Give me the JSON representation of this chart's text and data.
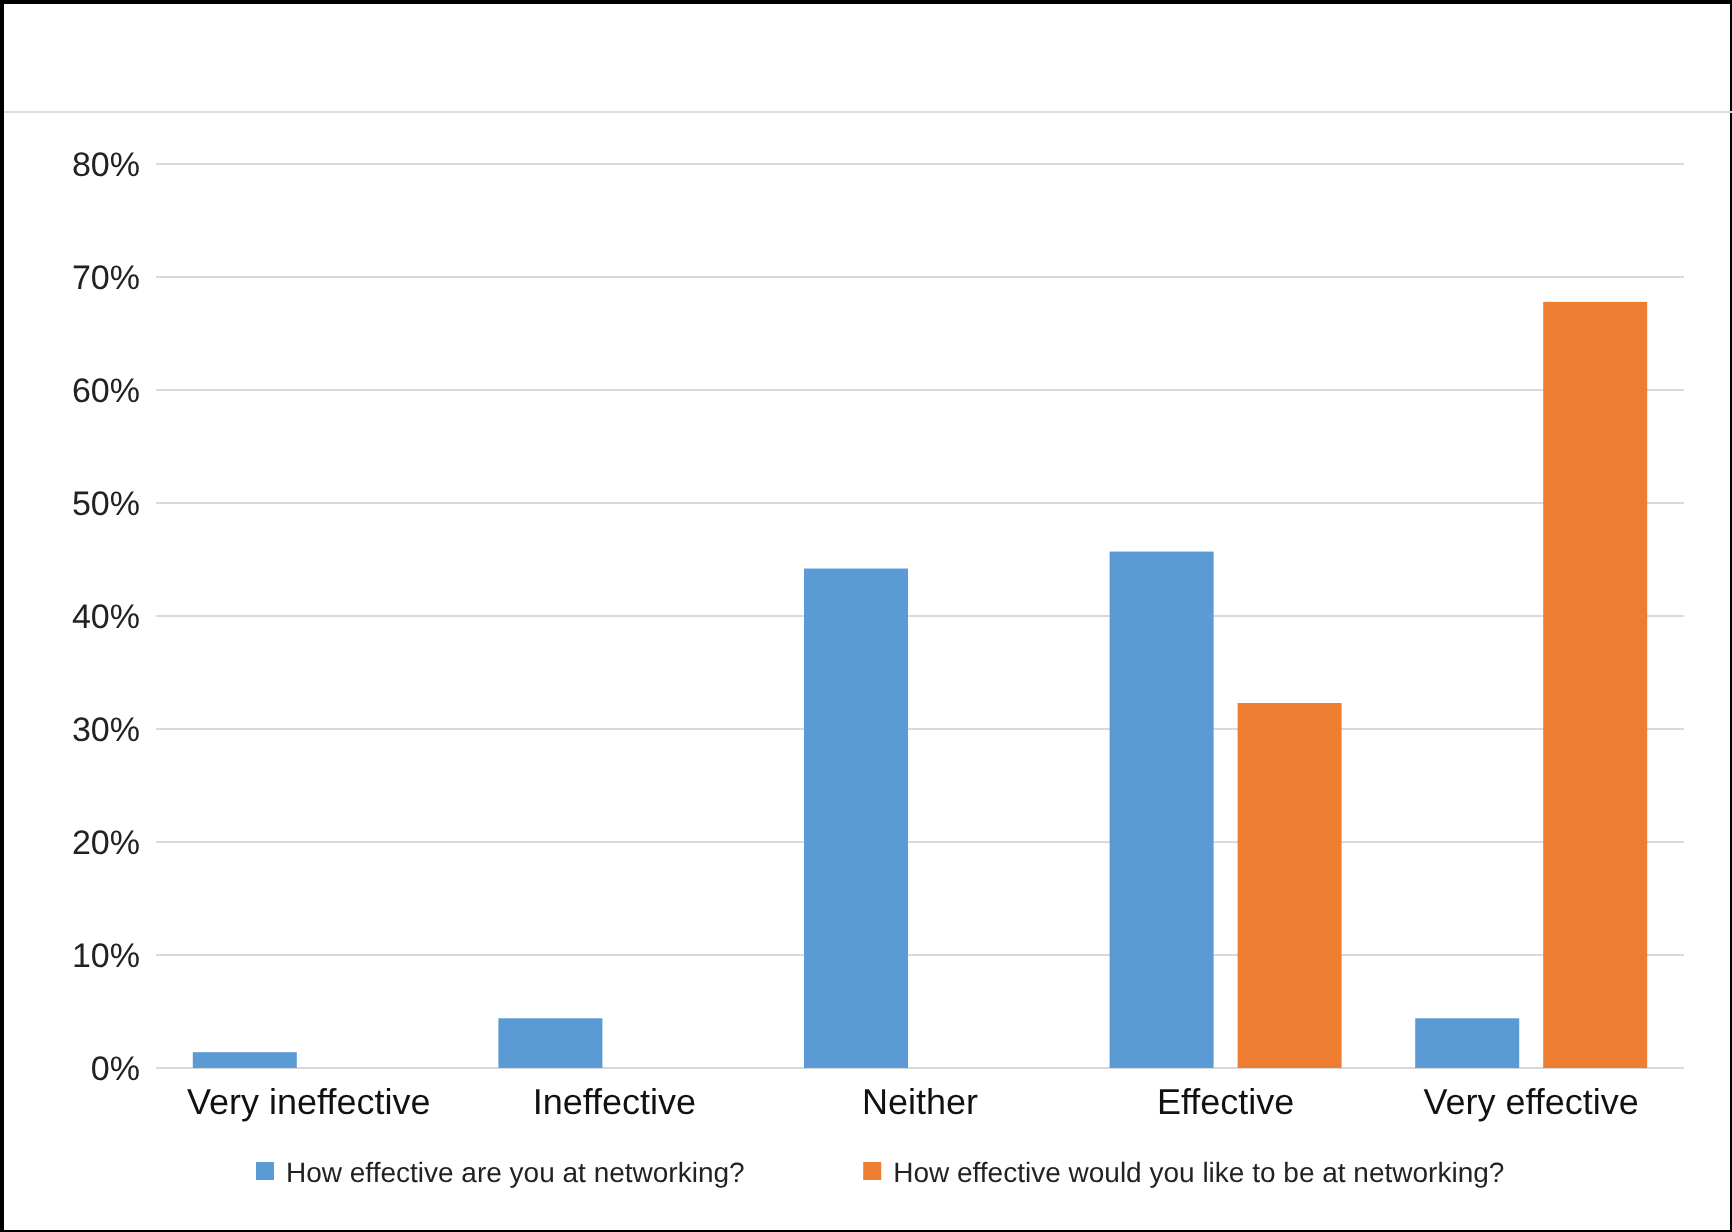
{
  "chart_data": {
    "type": "bar",
    "categories": [
      "Very ineffective",
      "Ineffective",
      "Neither",
      "Effective",
      "Very effective"
    ],
    "series": [
      {
        "name": "How effective are you at networking?",
        "color": "#5b9bd5",
        "values": [
          1.4,
          4.4,
          44.2,
          45.7,
          4.4
        ]
      },
      {
        "name": "How effective would you like to be at networking?",
        "color": "#ed7d31",
        "values": [
          null,
          null,
          null,
          32.3,
          67.8
        ]
      }
    ],
    "ylim": [
      0,
      80
    ],
    "yticks": [
      {
        "value": 0,
        "label": "0%"
      },
      {
        "value": 10,
        "label": "10%"
      },
      {
        "value": 20,
        "label": "20%"
      },
      {
        "value": 30,
        "label": "30%"
      },
      {
        "value": 40,
        "label": "40%"
      },
      {
        "value": 50,
        "label": "50%"
      },
      {
        "value": 60,
        "label": "60%"
      },
      {
        "value": 70,
        "label": "70%"
      },
      {
        "value": 80,
        "label": "80%"
      }
    ],
    "grid": "y",
    "legend": "bottom"
  }
}
